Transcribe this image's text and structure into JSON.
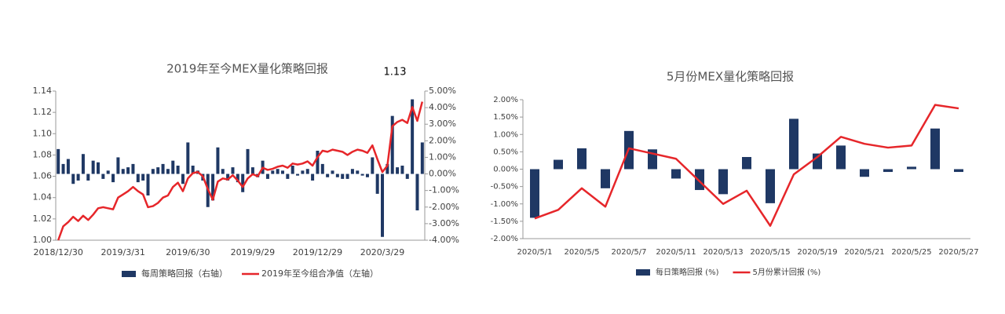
{
  "chart_data": [
    {
      "type": "combo",
      "title": "2019年至今MEX量化策略回报",
      "annotation": "1.13",
      "categories": [
        "2018/12/30",
        null,
        null,
        null,
        null,
        null,
        null,
        null,
        null,
        null,
        null,
        null,
        null,
        "2019/3/31",
        null,
        null,
        null,
        null,
        null,
        null,
        null,
        null,
        null,
        null,
        null,
        null,
        "2019/6/30",
        null,
        null,
        null,
        null,
        null,
        null,
        null,
        null,
        null,
        null,
        null,
        null,
        "2019/9/29",
        null,
        null,
        null,
        null,
        null,
        null,
        null,
        null,
        null,
        null,
        null,
        null,
        "2019/12/29",
        null,
        null,
        null,
        null,
        null,
        null,
        null,
        null,
        null,
        null,
        null,
        null,
        "2020/3/29",
        null,
        null,
        null,
        null,
        null,
        null,
        null,
        null
      ],
      "series": [
        {
          "name": "每周策略回报（右轴）",
          "type": "bar",
          "axis": "y2",
          "color": "#1f3864",
          "values": [
            1.5,
            0.6,
            0.9,
            -0.6,
            -0.4,
            1.2,
            -0.4,
            0.8,
            0.7,
            -0.3,
            0.2,
            -0.5,
            1.0,
            0.3,
            0.4,
            0.6,
            -0.5,
            -0.4,
            -1.3,
            0.3,
            0.4,
            0.6,
            0.3,
            0.8,
            0.5,
            -0.6,
            1.9,
            0.5,
            0.2,
            -0.4,
            -2.0,
            -1.6,
            1.6,
            0.3,
            -0.4,
            0.4,
            -0.5,
            -1.1,
            1.5,
            0.4,
            -0.2,
            0.8,
            -0.3,
            0.2,
            0.3,
            0.2,
            -0.3,
            0.5,
            -0.1,
            0.2,
            0.3,
            -0.4,
            1.4,
            0.6,
            -0.2,
            0.2,
            -0.2,
            -0.3,
            -0.3,
            0.3,
            0.2,
            -0.1,
            -0.2,
            1.0,
            -1.2,
            -3.8,
            0.6,
            3.5,
            0.4,
            0.5,
            -0.3,
            4.5,
            -2.2,
            1.9
          ]
        },
        {
          "name": "2019年至今组合净值（左轴）",
          "type": "line",
          "axis": "y",
          "color": "#e6262a",
          "values": [
            1.0,
            1.013,
            1.017,
            1.022,
            1.018,
            1.023,
            1.019,
            1.024,
            1.03,
            1.031,
            1.03,
            1.029,
            1.04,
            1.043,
            1.046,
            1.05,
            1.046,
            1.043,
            1.031,
            1.032,
            1.035,
            1.04,
            1.042,
            1.05,
            1.054,
            1.046,
            1.058,
            1.063,
            1.064,
            1.06,
            1.048,
            1.038,
            1.055,
            1.058,
            1.057,
            1.061,
            1.056,
            1.05,
            1.058,
            1.062,
            1.06,
            1.068,
            1.066,
            1.067,
            1.069,
            1.07,
            1.068,
            1.072,
            1.071,
            1.072,
            1.074,
            1.07,
            1.078,
            1.084,
            1.083,
            1.085,
            1.084,
            1.083,
            1.08,
            1.083,
            1.085,
            1.084,
            1.082,
            1.089,
            1.076,
            1.064,
            1.07,
            1.107,
            1.111,
            1.113,
            1.11,
            1.125,
            1.112,
            1.13
          ]
        }
      ],
      "ylim": [
        1.0,
        1.14
      ],
      "yticks": [
        {
          "value": 1.0,
          "label": "1.00"
        },
        {
          "value": 1.02,
          "label": "1.02"
        },
        {
          "value": 1.04,
          "label": "1.04"
        },
        {
          "value": 1.06,
          "label": "1.06"
        },
        {
          "value": 1.08,
          "label": "1.08"
        },
        {
          "value": 1.1,
          "label": "1.10"
        },
        {
          "value": 1.12,
          "label": "1.12"
        },
        {
          "value": 1.14,
          "label": "1.14"
        }
      ],
      "y2lim": [
        -4,
        5
      ],
      "y2ticks": [
        {
          "value": -4,
          "label": "-4.00%"
        },
        {
          "value": -3,
          "label": "-3.00%"
        },
        {
          "value": -2,
          "label": "-2.00%"
        },
        {
          "value": -1,
          "label": "-1.00%"
        },
        {
          "value": 0,
          "label": "0.00%"
        },
        {
          "value": 1,
          "label": "1.00%"
        },
        {
          "value": 2,
          "label": "2.00%"
        },
        {
          "value": 3,
          "label": "3.00%"
        },
        {
          "value": 4,
          "label": "4.00%"
        },
        {
          "value": 5,
          "label": "5.00%"
        }
      ],
      "legend": "bottom"
    },
    {
      "type": "combo",
      "title": "5月份MEX量化策略回报",
      "categories": [
        "2020/5/1",
        null,
        "2020/5/5",
        null,
        "2020/5/7",
        null,
        "2020/5/11",
        null,
        "2020/5/13",
        null,
        "2020/5/15",
        null,
        "2020/5/19",
        null,
        "2020/5/21",
        null,
        "2020/5/25",
        null,
        "2020/5/27"
      ],
      "series": [
        {
          "name": "每日策略回报 (%)",
          "type": "bar",
          "axis": "y",
          "color": "#1f3864",
          "values": [
            -1.4,
            0.27,
            0.6,
            -0.55,
            1.1,
            0.57,
            -0.27,
            -0.6,
            -0.72,
            0.35,
            -0.98,
            1.45,
            0.45,
            0.68,
            -0.22,
            -0.08,
            0.07,
            1.17,
            -0.08
          ]
        },
        {
          "name": "5月份累计回报 (%)",
          "type": "line",
          "axis": "y",
          "color": "#e6262a",
          "values": [
            -1.42,
            -1.17,
            -0.55,
            -1.08,
            0.6,
            0.45,
            0.3,
            -0.35,
            -1.0,
            -0.62,
            -1.63,
            -0.15,
            0.35,
            0.93,
            0.73,
            0.62,
            0.68,
            1.85,
            1.75
          ]
        }
      ],
      "ylim": [
        -2,
        2
      ],
      "yticks": [
        {
          "value": -2,
          "label": "-2.00%"
        },
        {
          "value": -1.5,
          "label": "-1.50%"
        },
        {
          "value": -1,
          "label": "-1.00%"
        },
        {
          "value": -0.5,
          "label": "-0.50%"
        },
        {
          "value": 0,
          "label": "0.00%"
        },
        {
          "value": 0.5,
          "label": "0.50%"
        },
        {
          "value": 1,
          "label": "1.00%"
        },
        {
          "value": 1.5,
          "label": "1.50%"
        },
        {
          "value": 2,
          "label": "2.00%"
        }
      ],
      "legend": "bottom"
    }
  ]
}
